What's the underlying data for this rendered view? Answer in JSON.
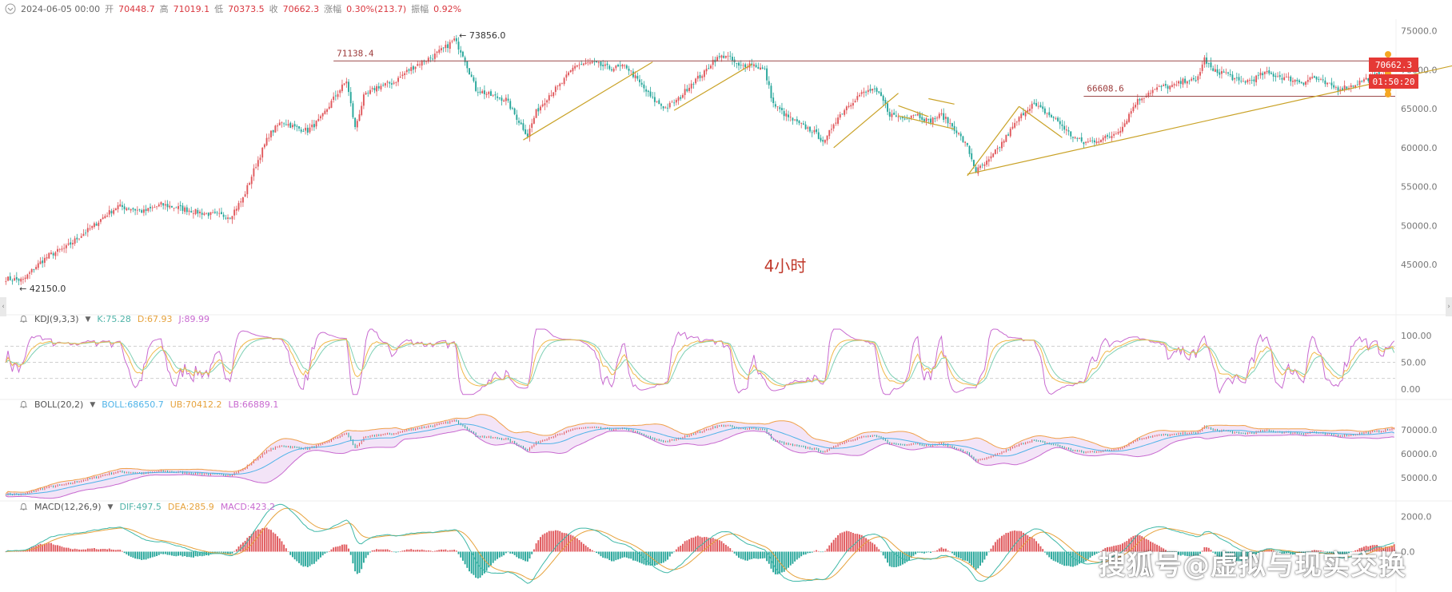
{
  "header": {
    "datetime": "2024-06-05 00:00",
    "open_label": "开",
    "open": "70448.7",
    "high_label": "高",
    "high": "71019.1",
    "low_label": "低",
    "low": "70373.5",
    "close_label": "收",
    "close": "70662.3",
    "change_label": "涨幅",
    "change": "0.30%(213.7)",
    "amplitude_label": "振幅",
    "amplitude": "0.92%"
  },
  "price_tag": {
    "price": "70662.3",
    "countdown": "01:50:20"
  },
  "timeframe_label": "4小时",
  "watermark": "搜狐号@虚拟与现实交换",
  "kdj": {
    "name": "KDJ(9,3,3)",
    "k": "K:75.28",
    "d": "D:67.93",
    "j": "J:89.99"
  },
  "boll": {
    "name": "BOLL(20,2)",
    "boll": "BOLL:68650.7",
    "ub": "UB:70412.2",
    "lb": "LB:66889.1"
  },
  "macd": {
    "name": "MACD(12,26,9)",
    "dif": "DIF:497.5",
    "dea": "DEA:285.9",
    "macd": "MACD:423.2"
  },
  "colors": {
    "up": "#e0575b",
    "down": "#26a69a",
    "accent": "#e53935",
    "trend": "#c9a227",
    "hline": "#9c4a4a",
    "k": "#f1b94a",
    "d": "#7ed0b4",
    "j": "#c86ad0",
    "mid": "#4fb3e8",
    "ub": "#f0a04a",
    "lb": "#c86ad0"
  },
  "chart_data": [
    {
      "type": "candlestick",
      "title": "4小时",
      "y_ticks": [
        75000,
        70000,
        65000,
        60000,
        55000,
        50000,
        45000
      ],
      "ylim": [
        40000,
        76500
      ],
      "close_path": [
        [
          0,
          43200
        ],
        [
          8,
          43000
        ],
        [
          14,
          44800
        ],
        [
          20,
          46200
        ],
        [
          28,
          47200
        ],
        [
          34,
          48600
        ],
        [
          40,
          49800
        ],
        [
          46,
          51300
        ],
        [
          52,
          52500
        ],
        [
          58,
          52200
        ],
        [
          64,
          51800
        ],
        [
          72,
          52700
        ],
        [
          80,
          52300
        ],
        [
          88,
          51800
        ],
        [
          96,
          51400
        ],
        [
          104,
          51200
        ],
        [
          110,
          53500
        ],
        [
          116,
          57800
        ],
        [
          122,
          61600
        ],
        [
          128,
          63400
        ],
        [
          134,
          62600
        ],
        [
          140,
          62200
        ],
        [
          146,
          63700
        ],
        [
          152,
          66300
        ],
        [
          158,
          68600
        ],
        [
          162,
          62500
        ],
        [
          166,
          66500
        ],
        [
          172,
          67800
        ],
        [
          180,
          68400
        ],
        [
          186,
          69800
        ],
        [
          192,
          70900
        ],
        [
          198,
          71700
        ],
        [
          204,
          72900
        ],
        [
          208,
          73856
        ],
        [
          212,
          72000
        ],
        [
          218,
          67500
        ],
        [
          226,
          66600
        ],
        [
          232,
          66200
        ],
        [
          236,
          64300
        ],
        [
          242,
          61600
        ],
        [
          246,
          64600
        ],
        [
          252,
          66800
        ],
        [
          258,
          68300
        ],
        [
          264,
          70600
        ],
        [
          272,
          70900
        ],
        [
          280,
          70200
        ],
        [
          288,
          70400
        ],
        [
          294,
          68300
        ],
        [
          300,
          66200
        ],
        [
          306,
          65100
        ],
        [
          312,
          66200
        ],
        [
          318,
          68300
        ],
        [
          324,
          69600
        ],
        [
          328,
          71200
        ],
        [
          334,
          71900
        ],
        [
          340,
          70400
        ],
        [
          346,
          70800
        ],
        [
          352,
          69900
        ],
        [
          356,
          65600
        ],
        [
          362,
          64100
        ],
        [
          368,
          63000
        ],
        [
          374,
          62200
        ],
        [
          380,
          60700
        ],
        [
          384,
          63200
        ],
        [
          390,
          65300
        ],
        [
          396,
          66800
        ],
        [
          402,
          67500
        ],
        [
          406,
          66500
        ],
        [
          410,
          64300
        ],
        [
          416,
          63800
        ],
        [
          422,
          64400
        ],
        [
          428,
          63400
        ],
        [
          434,
          64200
        ],
        [
          440,
          62500
        ],
        [
          446,
          60100
        ],
        [
          450,
          57000
        ],
        [
          456,
          58300
        ],
        [
          462,
          60600
        ],
        [
          466,
          62200
        ],
        [
          472,
          64500
        ],
        [
          476,
          65600
        ],
        [
          482,
          64600
        ],
        [
          488,
          63400
        ],
        [
          494,
          61600
        ],
        [
          500,
          60600
        ],
        [
          506,
          61000
        ],
        [
          512,
          61400
        ],
        [
          518,
          62700
        ],
        [
          524,
          65800
        ],
        [
          530,
          67100
        ],
        [
          536,
          67800
        ],
        [
          542,
          67900
        ],
        [
          548,
          68800
        ],
        [
          552,
          68400
        ],
        [
          556,
          71400
        ],
        [
          560,
          69800
        ],
        [
          566,
          69600
        ],
        [
          572,
          68400
        ],
        [
          578,
          68700
        ],
        [
          584,
          69600
        ],
        [
          590,
          69200
        ],
        [
          596,
          68800
        ],
        [
          602,
          68400
        ],
        [
          606,
          69100
        ],
        [
          612,
          68200
        ],
        [
          618,
          67600
        ],
        [
          624,
          67900
        ],
        [
          630,
          68700
        ],
        [
          636,
          69300
        ],
        [
          640,
          69800
        ],
        [
          644,
          70662.3
        ]
      ],
      "horizontal_levels": [
        {
          "label": "71138.4",
          "value": 71138.4,
          "from_index": 152,
          "to_index": 700
        },
        {
          "label": "66608.6",
          "value": 66608.6,
          "from_index": 500,
          "to_index": 660
        }
      ],
      "trend_lines": [
        {
          "from": [
            240,
            61000
          ],
          "to": [
            300,
            71000
          ]
        },
        {
          "from": [
            310,
            64800
          ],
          "to": [
            346,
            70700
          ]
        },
        {
          "from": [
            384,
            60000
          ],
          "to": [
            414,
            67000
          ]
        },
        {
          "from": [
            414,
            65400
          ],
          "to": [
            428,
            64000
          ]
        },
        {
          "from": [
            414,
            64100
          ],
          "to": [
            440,
            62400
          ]
        },
        {
          "from": [
            428,
            66300
          ],
          "to": [
            440,
            65600
          ]
        },
        {
          "from": [
            446,
            56400
          ],
          "to": [
            470,
            65300
          ]
        },
        {
          "from": [
            470,
            65300
          ],
          "to": [
            490,
            61300
          ]
        },
        {
          "from": [
            446,
            56600
          ],
          "to": [
            682,
            71200
          ]
        }
      ],
      "annotations": [
        {
          "text": "73856.0",
          "index": 208,
          "value": 73856.0,
          "role": "high"
        },
        {
          "text": "42150.0",
          "index": 4,
          "value": 42150.0,
          "role": "low"
        }
      ]
    },
    {
      "type": "line",
      "name": "KDJ(9,3,3)",
      "y_ticks": [
        100,
        50,
        0
      ],
      "ylim": [
        -15,
        118
      ],
      "reference_levels": [
        80,
        50,
        20
      ],
      "last": {
        "K": 75.28,
        "D": 67.93,
        "J": 89.99
      }
    },
    {
      "type": "area",
      "name": "BOLL(20,2)",
      "y_ticks": [
        70000,
        60000,
        50000
      ],
      "ylim": [
        42000,
        78000
      ],
      "last": {
        "BOLL": 68650.7,
        "UB": 70412.2,
        "LB": 66889.1
      }
    },
    {
      "type": "bar",
      "name": "MACD(12,26,9)",
      "y_ticks": [
        2000,
        0
      ],
      "ylim": [
        -2300,
        2300
      ],
      "last": {
        "DIF": 497.5,
        "DEA": 285.9,
        "MACD": 423.2
      }
    }
  ]
}
